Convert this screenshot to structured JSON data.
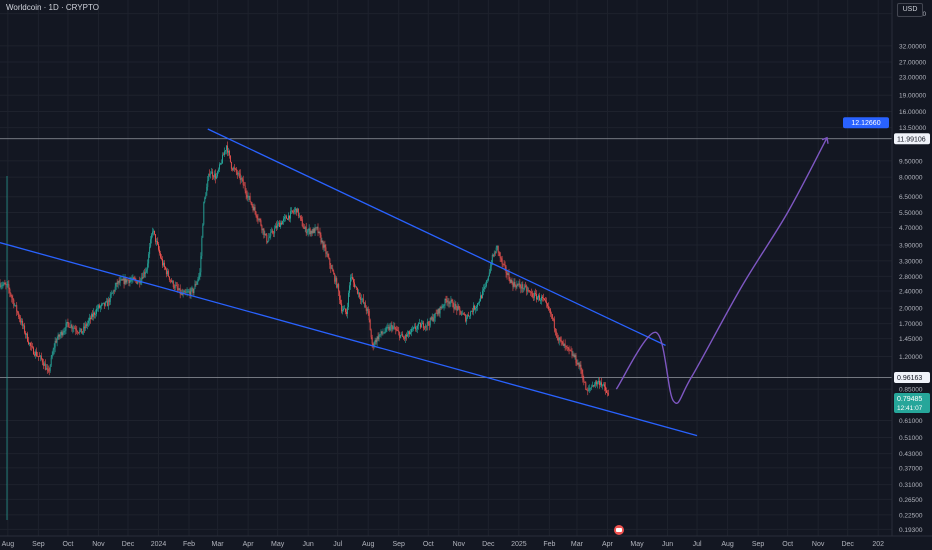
{
  "header": {
    "title": "Worldcoin · 1D · CRYPTO",
    "currency": "USD"
  },
  "price_axis": {
    "ticks": [
      "45.00000",
      "32.00000",
      "27.00000",
      "23.00000",
      "19.00000",
      "16.00000",
      "13.50000",
      "9.50000",
      "8.00000",
      "6.50000",
      "5.50000",
      "4.70000",
      "3.90000",
      "3.30000",
      "2.80000",
      "2.40000",
      "2.00000",
      "1.70000",
      "1.45000",
      "1.20000",
      "0.85000",
      "0.61000",
      "0.51000",
      "0.43000",
      "0.37000",
      "0.31000",
      "0.26500",
      "0.22500",
      "0.19300"
    ]
  },
  "time_axis": {
    "ticks": [
      "Aug",
      "Sep",
      "Oct",
      "Nov",
      "Dec",
      "2024",
      "Feb",
      "Mar",
      "Apr",
      "May",
      "Jun",
      "Jul",
      "Aug",
      "Sep",
      "Oct",
      "Nov",
      "Dec",
      "2025",
      "Feb",
      "Mar",
      "Apr",
      "May",
      "Jun",
      "Jul",
      "Aug",
      "Sep",
      "Oct",
      "Nov",
      "Dec",
      "202"
    ]
  },
  "badges": {
    "target": "12.12660",
    "resistance": "11.99106",
    "support": "0.96163",
    "last_price": "0.79485",
    "countdown": "12:41:07"
  },
  "colors": {
    "background": "#131722",
    "grid": "#1e222d",
    "up": "#26a69a",
    "down": "#ef5350",
    "trendline": "#2962ff",
    "projection": "#7e57c2",
    "level_line": "#787b86",
    "target_badge": "#2962ff",
    "last_price_badge": "#26a69a"
  },
  "chart_data": {
    "type": "candlestick",
    "scale": "log",
    "ylim": [
      0.18,
      52
    ],
    "x_range": [
      "2023-07-24",
      "2026-01-15"
    ],
    "grid": true,
    "price_path": [
      [
        "2023-07-24",
        2.6
      ],
      [
        "2023-08-01",
        2.5
      ],
      [
        "2023-08-12",
        1.85
      ],
      [
        "2023-08-25",
        1.3
      ],
      [
        "2023-09-05",
        1.15
      ],
      [
        "2023-09-11",
        1.0
      ],
      [
        "2023-09-18",
        1.4
      ],
      [
        "2023-10-01",
        1.7
      ],
      [
        "2023-10-15",
        1.55
      ],
      [
        "2023-10-31",
        2.0
      ],
      [
        "2023-11-10",
        2.1
      ],
      [
        "2023-11-20",
        2.6
      ],
      [
        "2023-12-01",
        2.7
      ],
      [
        "2023-12-12",
        2.65
      ],
      [
        "2023-12-20",
        3.05
      ],
      [
        "2023-12-26",
        4.6
      ],
      [
        "2024-01-05",
        3.2
      ],
      [
        "2024-01-15",
        2.6
      ],
      [
        "2024-01-25",
        2.3
      ],
      [
        "2024-02-05",
        2.4
      ],
      [
        "2024-02-12",
        2.9
      ],
      [
        "2024-02-16",
        6.0
      ],
      [
        "2024-02-22",
        8.5
      ],
      [
        "2024-02-29",
        8.0
      ],
      [
        "2024-03-10",
        11.2
      ],
      [
        "2024-03-15",
        9.0
      ],
      [
        "2024-03-25",
        7.8
      ],
      [
        "2024-04-01",
        6.5
      ],
      [
        "2024-04-13",
        5.0
      ],
      [
        "2024-04-20",
        4.1
      ],
      [
        "2024-05-01",
        4.8
      ],
      [
        "2024-05-10",
        5.2
      ],
      [
        "2024-05-20",
        5.7
      ],
      [
        "2024-05-28",
        4.6
      ],
      [
        "2024-06-05",
        4.5
      ],
      [
        "2024-06-10",
        4.6
      ],
      [
        "2024-06-20",
        3.5
      ],
      [
        "2024-07-01",
        2.5
      ],
      [
        "2024-07-05",
        2.0
      ],
      [
        "2024-07-10",
        1.9
      ],
      [
        "2024-07-14",
        2.8
      ],
      [
        "2024-07-21",
        2.4
      ],
      [
        "2024-08-01",
        1.9
      ],
      [
        "2024-08-05",
        1.35
      ],
      [
        "2024-08-12",
        1.5
      ],
      [
        "2024-08-25",
        1.65
      ],
      [
        "2024-09-06",
        1.45
      ],
      [
        "2024-09-20",
        1.65
      ],
      [
        "2024-10-01",
        1.7
      ],
      [
        "2024-10-10",
        1.9
      ],
      [
        "2024-10-20",
        2.2
      ],
      [
        "2024-10-30",
        2.0
      ],
      [
        "2024-11-08",
        1.8
      ],
      [
        "2024-11-20",
        2.1
      ],
      [
        "2024-11-28",
        2.5
      ],
      [
        "2024-12-05",
        3.4
      ],
      [
        "2024-12-10",
        3.8
      ],
      [
        "2024-12-15",
        3.2
      ],
      [
        "2024-12-25",
        2.6
      ],
      [
        "2025-01-05",
        2.5
      ],
      [
        "2025-01-15",
        2.3
      ],
      [
        "2025-01-25",
        2.2
      ],
      [
        "2025-02-03",
        1.85
      ],
      [
        "2025-02-10",
        1.45
      ],
      [
        "2025-02-15",
        1.35
      ],
      [
        "2025-02-26",
        1.2
      ],
      [
        "2025-03-05",
        1.05
      ],
      [
        "2025-03-11",
        0.82
      ],
      [
        "2025-03-18",
        0.9
      ],
      [
        "2025-03-25",
        0.92
      ],
      [
        "2025-04-02",
        0.79
      ]
    ],
    "levels": [
      {
        "price": 11.99106,
        "label": "11.99106"
      },
      {
        "price": 0.96163,
        "label": "0.96163"
      }
    ],
    "trendlines": [
      {
        "name": "upper",
        "from": [
          "2024-02-20",
          13.3
        ],
        "to": [
          "2025-05-30",
          1.35
        ]
      },
      {
        "name": "lower",
        "from": [
          "2023-07-24",
          4.0
        ],
        "to": [
          "2025-07-01",
          0.52
        ]
      }
    ],
    "projection": [
      [
        "2025-04-10",
        0.85
      ],
      [
        "2025-05-20",
        1.55
      ],
      [
        "2025-06-07",
        0.75
      ],
      [
        "2025-06-25",
        0.96
      ],
      [
        "2025-08-15",
        2.5
      ],
      [
        "2025-10-01",
        5.5
      ],
      [
        "2025-11-10",
        12.1266
      ]
    ],
    "target": {
      "price": 12.1266,
      "label": "12.12660"
    },
    "last_price": {
      "value": 0.79485,
      "label": "0.79485"
    }
  }
}
